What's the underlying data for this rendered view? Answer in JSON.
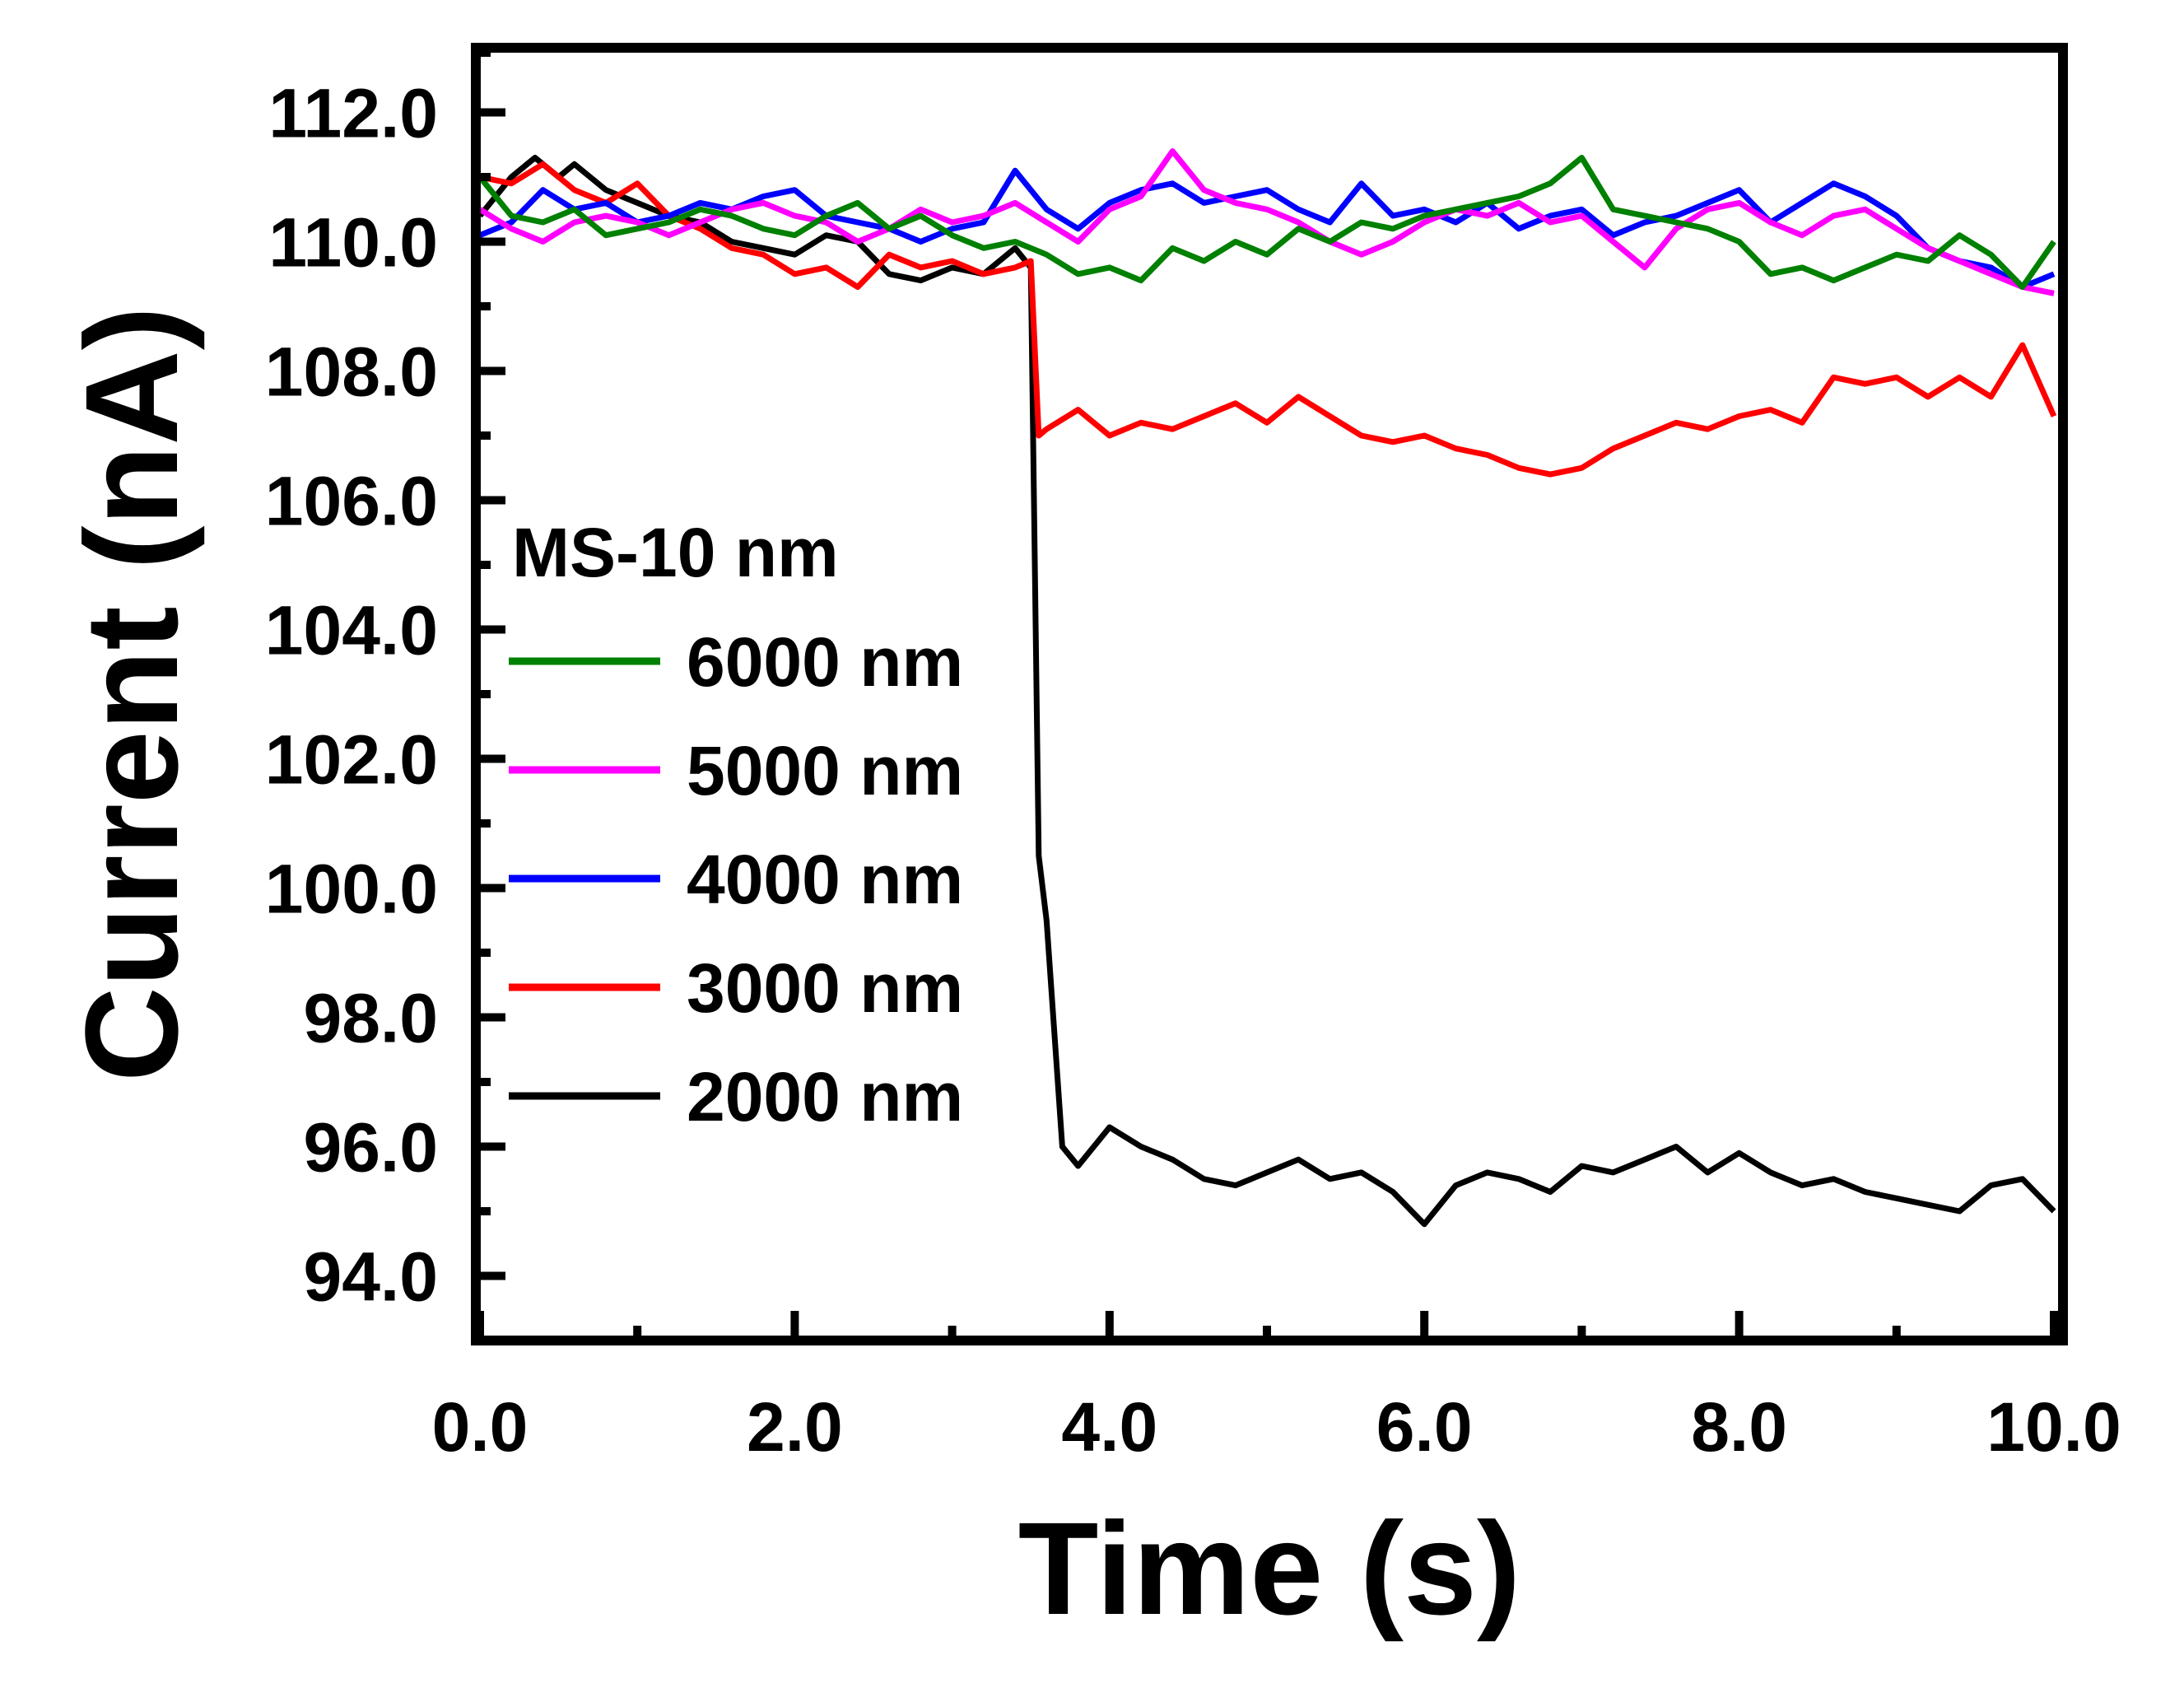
{
  "chart_data": {
    "type": "line",
    "title": "",
    "xlabel": "Time (s)",
    "ylabel": "Current (nA)",
    "xlim": [
      0,
      10
    ],
    "ylim": [
      93,
      113
    ],
    "x_ticks": [
      "0.0",
      "2.0",
      "4.0",
      "6.0",
      "8.0",
      "10.0"
    ],
    "y_ticks": [
      "94.0",
      "96.0",
      "98.0",
      "100.0",
      "102.0",
      "104.0",
      "106.0",
      "108.0",
      "110.0",
      "112.0"
    ],
    "legend_title": "MS-10 nm",
    "legend_position": "left-center",
    "series": [
      {
        "name": "6000 nm",
        "color": "#008000",
        "x": [
          0,
          0.2,
          0.4,
          0.6,
          0.8,
          1.0,
          1.2,
          1.4,
          1.6,
          1.8,
          2.0,
          2.2,
          2.4,
          2.6,
          2.8,
          3.0,
          3.2,
          3.4,
          3.6,
          3.8,
          4.0,
          4.2,
          4.4,
          4.6,
          4.8,
          5.0,
          5.2,
          5.4,
          5.6,
          5.8,
          6.0,
          6.2,
          6.4,
          6.6,
          6.8,
          7.0,
          7.2,
          7.4,
          7.6,
          7.8,
          8.0,
          8.2,
          8.4,
          8.6,
          8.8,
          9.0,
          9.2,
          9.4,
          9.6,
          9.8,
          10.0
        ],
        "y": [
          111.0,
          110.4,
          110.3,
          110.5,
          110.1,
          110.2,
          110.3,
          110.5,
          110.4,
          110.2,
          110.1,
          110.4,
          110.6,
          110.2,
          110.4,
          110.1,
          109.9,
          110.0,
          109.8,
          109.5,
          109.6,
          109.4,
          109.9,
          109.7,
          110.0,
          109.8,
          110.2,
          110.0,
          110.3,
          110.2,
          110.4,
          110.5,
          110.6,
          110.7,
          110.9,
          111.3,
          110.5,
          110.4,
          110.3,
          110.2,
          110.0,
          109.5,
          109.6,
          109.4,
          109.6,
          109.8,
          109.7,
          110.1,
          109.8,
          109.3,
          110.0
        ]
      },
      {
        "name": "5000 nm",
        "color": "#ff00ff",
        "x": [
          0,
          0.2,
          0.4,
          0.6,
          0.8,
          1.0,
          1.2,
          1.4,
          1.6,
          1.8,
          2.0,
          2.2,
          2.4,
          2.6,
          2.8,
          3.0,
          3.2,
          3.4,
          3.6,
          3.8,
          4.0,
          4.2,
          4.4,
          4.6,
          4.8,
          5.0,
          5.2,
          5.4,
          5.6,
          5.8,
          6.0,
          6.2,
          6.4,
          6.6,
          6.8,
          7.0,
          7.2,
          7.4,
          7.6,
          7.8,
          8.0,
          8.2,
          8.4,
          8.6,
          8.8,
          9.0,
          9.2,
          9.4,
          9.6,
          9.8,
          10.0
        ],
        "y": [
          110.5,
          110.2,
          110.0,
          110.3,
          110.4,
          110.3,
          110.1,
          110.3,
          110.5,
          110.6,
          110.4,
          110.3,
          110.0,
          110.2,
          110.5,
          110.3,
          110.4,
          110.6,
          110.3,
          110.0,
          110.5,
          110.7,
          111.4,
          110.8,
          110.6,
          110.5,
          110.3,
          110.0,
          109.8,
          110.0,
          110.3,
          110.5,
          110.4,
          110.6,
          110.3,
          110.4,
          110.0,
          109.6,
          110.2,
          110.5,
          110.6,
          110.3,
          110.1,
          110.4,
          110.5,
          110.2,
          109.9,
          109.7,
          109.5,
          109.3,
          109.2
        ]
      },
      {
        "name": "4000 nm",
        "color": "#0000ff",
        "x": [
          0,
          0.2,
          0.4,
          0.6,
          0.8,
          1.0,
          1.2,
          1.4,
          1.6,
          1.8,
          2.0,
          2.2,
          2.4,
          2.6,
          2.8,
          3.0,
          3.2,
          3.4,
          3.6,
          3.8,
          4.0,
          4.2,
          4.4,
          4.6,
          4.8,
          5.0,
          5.2,
          5.4,
          5.6,
          5.8,
          6.0,
          6.2,
          6.4,
          6.6,
          6.8,
          7.0,
          7.2,
          7.4,
          7.6,
          7.8,
          8.0,
          8.2,
          8.4,
          8.6,
          8.8,
          9.0,
          9.2,
          9.4,
          9.6,
          9.8,
          10.0
        ],
        "y": [
          110.1,
          110.3,
          110.8,
          110.5,
          110.6,
          110.3,
          110.4,
          110.6,
          110.5,
          110.7,
          110.8,
          110.4,
          110.3,
          110.2,
          110.0,
          110.2,
          110.3,
          111.1,
          110.5,
          110.2,
          110.6,
          110.8,
          110.9,
          110.6,
          110.7,
          110.8,
          110.5,
          110.3,
          110.9,
          110.4,
          110.5,
          110.3,
          110.6,
          110.2,
          110.4,
          110.5,
          110.1,
          110.3,
          110.4,
          110.6,
          110.8,
          110.3,
          110.6,
          110.9,
          110.7,
          110.4,
          109.9,
          109.7,
          109.6,
          109.3,
          109.5
        ]
      },
      {
        "name": "3000 nm",
        "color": "#ff0000",
        "x": [
          0,
          0.2,
          0.4,
          0.6,
          0.8,
          1.0,
          1.2,
          1.4,
          1.6,
          1.8,
          2.0,
          2.2,
          2.4,
          2.6,
          2.8,
          3.0,
          3.2,
          3.4,
          3.5,
          3.55,
          3.6,
          3.8,
          4.0,
          4.2,
          4.4,
          4.6,
          4.8,
          5.0,
          5.2,
          5.4,
          5.6,
          5.8,
          6.0,
          6.2,
          6.4,
          6.6,
          6.8,
          7.0,
          7.2,
          7.4,
          7.6,
          7.8,
          8.0,
          8.2,
          8.4,
          8.6,
          8.8,
          9.0,
          9.2,
          9.4,
          9.6,
          9.8,
          10.0
        ],
        "y": [
          111.0,
          110.9,
          111.2,
          110.8,
          110.6,
          110.9,
          110.4,
          110.2,
          109.9,
          109.8,
          109.5,
          109.6,
          109.3,
          109.8,
          109.6,
          109.7,
          109.5,
          109.6,
          109.7,
          107.0,
          107.1,
          107.4,
          107.0,
          107.2,
          107.1,
          107.3,
          107.5,
          107.2,
          107.6,
          107.3,
          107.0,
          106.9,
          107.0,
          106.8,
          106.7,
          106.5,
          106.4,
          106.5,
          106.8,
          107.0,
          107.2,
          107.1,
          107.3,
          107.4,
          107.2,
          107.9,
          107.8,
          107.9,
          107.6,
          107.9,
          107.6,
          108.4,
          107.3
        ]
      },
      {
        "name": "2000 nm",
        "color": "#000000",
        "x": [
          0,
          0.2,
          0.35,
          0.5,
          0.6,
          0.8,
          1.0,
          1.2,
          1.4,
          1.6,
          1.8,
          2.0,
          2.2,
          2.4,
          2.6,
          2.8,
          3.0,
          3.2,
          3.4,
          3.5,
          3.55,
          3.6,
          3.7,
          3.8,
          4.0,
          4.2,
          4.4,
          4.6,
          4.8,
          5.0,
          5.2,
          5.4,
          5.6,
          5.8,
          6.0,
          6.2,
          6.4,
          6.6,
          6.8,
          7.0,
          7.2,
          7.4,
          7.6,
          7.8,
          8.0,
          8.2,
          8.4,
          8.6,
          8.8,
          9.0,
          9.2,
          9.4,
          9.6,
          9.8,
          10.0
        ],
        "y": [
          110.4,
          111.0,
          111.3,
          111.0,
          111.2,
          110.8,
          110.6,
          110.4,
          110.3,
          110.0,
          109.9,
          109.8,
          110.1,
          110.0,
          109.5,
          109.4,
          109.6,
          109.5,
          109.9,
          109.6,
          100.5,
          99.5,
          96.0,
          95.7,
          96.3,
          96.0,
          95.8,
          95.5,
          95.4,
          95.6,
          95.8,
          95.5,
          95.6,
          95.3,
          94.8,
          95.4,
          95.6,
          95.5,
          95.3,
          95.7,
          95.6,
          95.8,
          96.0,
          95.6,
          95.9,
          95.6,
          95.4,
          95.5,
          95.3,
          95.2,
          95.1,
          95.0,
          95.4,
          95.5,
          95.0
        ]
      }
    ]
  }
}
